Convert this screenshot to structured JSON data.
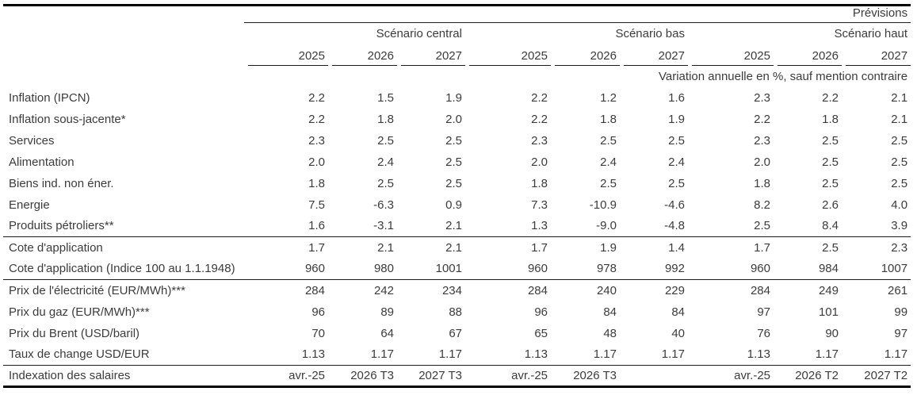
{
  "table": {
    "top_right_label": "Prévisions",
    "unit_note": "Variation annuelle en %, sauf mention contraire",
    "scenario_headers": [
      "Scénario central",
      "Scénario bas",
      "Scénario haut"
    ],
    "year_headers": [
      "2025",
      "2026",
      "2027",
      "2025",
      "2026",
      "2027",
      "2025",
      "2026",
      "2027"
    ],
    "sections": [
      {
        "rows": [
          {
            "label": "Inflation (IPCN)",
            "values": [
              "2.2",
              "1.5",
              "1.9",
              "2.2",
              "1.2",
              "1.6",
              "2.3",
              "2.2",
              "2.1"
            ]
          },
          {
            "label": "Inflation sous-jacente*",
            "values": [
              "2.2",
              "1.8",
              "2.0",
              "2.2",
              "1.8",
              "1.9",
              "2.2",
              "1.8",
              "2.1"
            ]
          },
          {
            "label": "Services",
            "values": [
              "2.3",
              "2.5",
              "2.5",
              "2.3",
              "2.5",
              "2.5",
              "2.3",
              "2.5",
              "2.5"
            ]
          },
          {
            "label": "Alimentation",
            "values": [
              "2.0",
              "2.4",
              "2.5",
              "2.0",
              "2.4",
              "2.4",
              "2.0",
              "2.5",
              "2.5"
            ]
          },
          {
            "label": "Biens ind. non éner.",
            "values": [
              "1.8",
              "2.5",
              "2.5",
              "1.8",
              "2.5",
              "2.5",
              "1.8",
              "2.5",
              "2.5"
            ]
          },
          {
            "label": "Energie",
            "values": [
              "7.5",
              "-6.3",
              "0.9",
              "7.3",
              "-10.9",
              "-4.6",
              "8.2",
              "2.6",
              "4.0"
            ]
          },
          {
            "label": "Produits pétroliers**",
            "values": [
              "1.6",
              "-3.1",
              "2.1",
              "1.3",
              "-9.0",
              "-4.8",
              "2.5",
              "8.4",
              "3.9"
            ]
          }
        ]
      },
      {
        "rows": [
          {
            "label": "Cote d'application",
            "values": [
              "1.7",
              "2.1",
              "2.1",
              "1.7",
              "1.9",
              "1.4",
              "1.7",
              "2.5",
              "2.3"
            ]
          },
          {
            "label": "Cote d'application (Indice 100 au 1.1.1948)",
            "values": [
              "960",
              "980",
              "1001",
              "960",
              "978",
              "992",
              "960",
              "984",
              "1007"
            ]
          }
        ]
      },
      {
        "rows": [
          {
            "label": "Prix de l'électricité (EUR/MWh)***",
            "values": [
              "284",
              "242",
              "234",
              "284",
              "240",
              "229",
              "284",
              "249",
              "261"
            ]
          },
          {
            "label": "Prix du gaz (EUR/MWh)***",
            "values": [
              "96",
              "89",
              "88",
              "96",
              "84",
              "84",
              "97",
              "101",
              "99"
            ]
          },
          {
            "label": "Prix du Brent (USD/baril)",
            "values": [
              "70",
              "64",
              "67",
              "65",
              "48",
              "40",
              "76",
              "90",
              "97"
            ]
          },
          {
            "label": "Taux de change USD/EUR",
            "values": [
              "1.13",
              "1.17",
              "1.17",
              "1.13",
              "1.17",
              "1.17",
              "1.13",
              "1.17",
              "1.17"
            ]
          }
        ]
      },
      {
        "rows": [
          {
            "label": "Indexation des salaires",
            "values": [
              "avr.-25",
              "2026 T3",
              "2027 T3",
              "avr.-25",
              "2026 T3",
              "",
              "avr.-25",
              "2026 T2",
              "2027 T2"
            ]
          }
        ]
      }
    ]
  }
}
